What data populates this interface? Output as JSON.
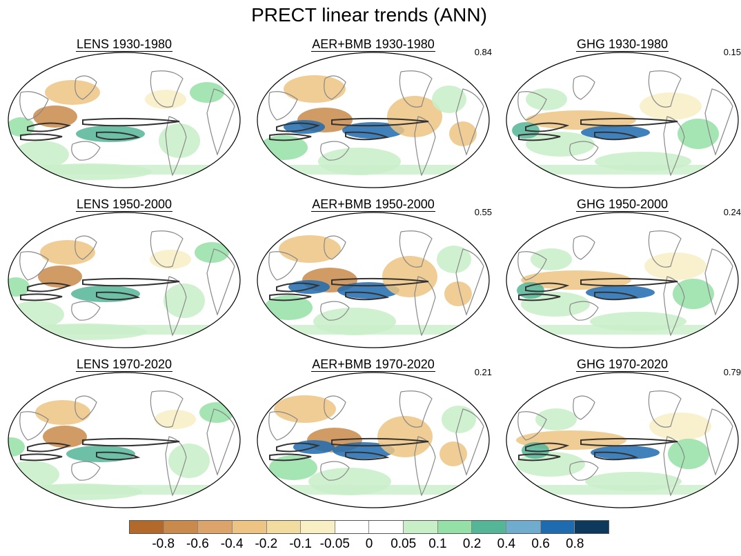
{
  "title": "PRECT linear trends (ANN)",
  "panels": [
    {
      "title": "LENS 1930-1980",
      "corr": "",
      "variant": "lens1"
    },
    {
      "title": "AER+BMB 1930-1980",
      "corr": "0.84",
      "variant": "aer1"
    },
    {
      "title": "GHG 1930-1980",
      "corr": "0.15",
      "variant": "ghg1"
    },
    {
      "title": "LENS 1950-2000",
      "corr": "",
      "variant": "lens2"
    },
    {
      "title": "AER+BMB 1950-2000",
      "corr": "0.55",
      "variant": "aer2"
    },
    {
      "title": "GHG 1950-2000",
      "corr": "0.24",
      "variant": "ghg2"
    },
    {
      "title": "LENS 1970-2020",
      "corr": "",
      "variant": "lens3"
    },
    {
      "title": "AER+BMB 1970-2020",
      "corr": "0.21",
      "variant": "aer3"
    },
    {
      "title": "GHG 1970-2020",
      "corr": "0.79",
      "variant": "ghg3"
    }
  ],
  "colorbar": {
    "colors": [
      "#b2692a",
      "#c98a4b",
      "#dca46a",
      "#edc483",
      "#f2dc9f",
      "#f8efc4",
      "#ffffff",
      "#ffffff",
      "#c8efc8",
      "#95e0a7",
      "#54b597",
      "#6faccd",
      "#1e6bb0",
      "#0d3a5c"
    ],
    "labels": [
      "-0.8",
      "-0.6",
      "-0.4",
      "-0.2",
      "-0.1",
      "-0.05",
      "0",
      "0.05",
      "0.1",
      "0.2",
      "0.4",
      "0.6",
      "0.8"
    ]
  }
}
